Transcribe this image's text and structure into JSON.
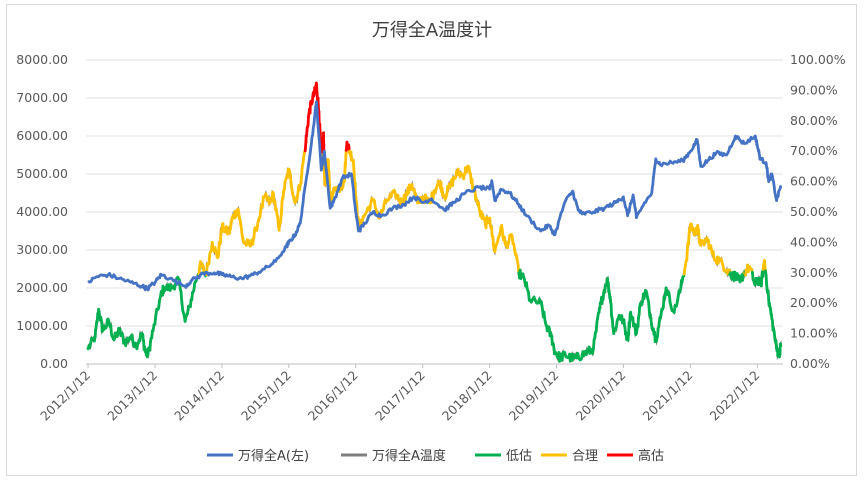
{
  "chart_data": {
    "type": "line",
    "title": "万得全A温度计",
    "x_tick_labels": [
      "2012/1/12",
      "2013/1/12",
      "2014/1/12",
      "2015/1/12",
      "2016/1/12",
      "2017/1/12",
      "2018/1/12",
      "2019/1/12",
      "2020/1/12",
      "2021/1/12",
      "2022/1/12"
    ],
    "y_left_ticks": [
      "0.00",
      "1000.00",
      "2000.00",
      "3000.00",
      "4000.00",
      "5000.00",
      "6000.00",
      "7000.00",
      "8000.00"
    ],
    "y_right_ticks": [
      "0.00%",
      "10.00%",
      "20.00%",
      "30.00%",
      "40.00%",
      "50.00%",
      "60.00%",
      "70.00%",
      "80.00%",
      "90.00%",
      "100.00%"
    ],
    "ylim_left": [
      0,
      8000
    ],
    "ylim_right": [
      0,
      100
    ],
    "x_range": [
      "2012/1/1",
      "2022/6/1"
    ],
    "legend": [
      "万得全A(左)",
      "万得全A温度",
      "低估",
      "合理",
      "高估"
    ],
    "colors": {
      "index": "#4472c4",
      "temperature": "#7f7f7f",
      "low": "#00b050",
      "fair": "#ffc000",
      "high": "#ff0000"
    },
    "thresholds_pct": {
      "low_upper": 30,
      "high_lower": 70
    },
    "series": [
      {
        "name": "万得全A(左)",
        "axis": "left",
        "points": [
          [
            "2012/1/12",
            2150
          ],
          [
            "2012/3/1",
            2300
          ],
          [
            "2012/5/1",
            2350
          ],
          [
            "2012/7/1",
            2250
          ],
          [
            "2012/9/1",
            2150
          ],
          [
            "2012/11/1",
            2050
          ],
          [
            "2012/12/1",
            1980
          ],
          [
            "2013/1/12",
            2150
          ],
          [
            "2013/2/15",
            2350
          ],
          [
            "2013/4/1",
            2250
          ],
          [
            "2013/6/25",
            2050
          ],
          [
            "2013/8/1",
            2200
          ],
          [
            "2013/10/1",
            2380
          ],
          [
            "2013/12/1",
            2400
          ],
          [
            "2014/1/12",
            2350
          ],
          [
            "2014/3/1",
            2300
          ],
          [
            "2014/5/1",
            2250
          ],
          [
            "2014/7/1",
            2350
          ],
          [
            "2014/9/1",
            2500
          ],
          [
            "2014/11/1",
            2700
          ],
          [
            "2014/12/31",
            3100
          ],
          [
            "2015/1/12",
            3200
          ],
          [
            "2015/2/15",
            3400
          ],
          [
            "2015/3/15",
            3700
          ],
          [
            "2015/4/15",
            4800
          ],
          [
            "2015/5/15",
            5800
          ],
          [
            "2015/6/12",
            6900
          ],
          [
            "2015/7/8",
            5100
          ],
          [
            "2015/7/25",
            5600
          ],
          [
            "2015/8/26",
            4100
          ],
          [
            "2015/9/15",
            4300
          ],
          [
            "2015/11/1",
            4900
          ],
          [
            "2015/12/20",
            5000
          ],
          [
            "2016/1/12",
            4000
          ],
          [
            "2016/1/28",
            3500
          ],
          [
            "2016/3/1",
            3700
          ],
          [
            "2016/4/15",
            4000
          ],
          [
            "2016/6/1",
            3900
          ],
          [
            "2016/8/1",
            4100
          ],
          [
            "2016/10/1",
            4200
          ],
          [
            "2016/11/25",
            4400
          ],
          [
            "2017/1/12",
            4250
          ],
          [
            "2017/3/1",
            4350
          ],
          [
            "2017/5/10",
            4050
          ],
          [
            "2017/7/1",
            4250
          ],
          [
            "2017/9/1",
            4500
          ],
          [
            "2017/11/15",
            4650
          ],
          [
            "2018/1/12",
            4600
          ],
          [
            "2018/1/25",
            4800
          ],
          [
            "2018/2/9",
            4300
          ],
          [
            "2018/3/15",
            4600
          ],
          [
            "2018/5/1",
            4500
          ],
          [
            "2018/6/20",
            4200
          ],
          [
            "2018/8/1",
            3900
          ],
          [
            "2018/10/18",
            3500
          ],
          [
            "2018/12/1",
            3650
          ],
          [
            "2019/1/3",
            3400
          ],
          [
            "2019/2/25",
            4250
          ],
          [
            "2019/4/10",
            4550
          ],
          [
            "2019/5/10",
            4050
          ],
          [
            "2019/6/1",
            3950
          ],
          [
            "2019/8/1",
            4000
          ],
          [
            "2019/10/1",
            4100
          ],
          [
            "2019/12/1",
            4250
          ],
          [
            "2020/1/12",
            4400
          ],
          [
            "2020/2/4",
            3900
          ],
          [
            "2020/3/5",
            4450
          ],
          [
            "2020/3/23",
            3850
          ],
          [
            "2020/5/1",
            4200
          ],
          [
            "2020/6/15",
            4500
          ],
          [
            "2020/7/7",
            5400
          ],
          [
            "2020/8/1",
            5250
          ],
          [
            "2020/10/1",
            5300
          ],
          [
            "2020/12/1",
            5350
          ],
          [
            "2021/1/12",
            5600
          ],
          [
            "2021/2/18",
            5900
          ],
          [
            "2021/3/9",
            5200
          ],
          [
            "2021/4/15",
            5350
          ],
          [
            "2021/6/1",
            5550
          ],
          [
            "2021/7/28",
            5500
          ],
          [
            "2021/9/14",
            6000
          ],
          [
            "2021/11/1",
            5800
          ],
          [
            "2021/12/31",
            6000
          ],
          [
            "2022/1/12",
            5750
          ],
          [
            "2022/1/28",
            5400
          ],
          [
            "2022/3/1",
            5300
          ],
          [
            "2022/3/15",
            4800
          ],
          [
            "2022/4/1",
            5000
          ],
          [
            "2022/4/27",
            4300
          ],
          [
            "2022/5/20",
            4700
          ]
        ]
      },
      {
        "name": "万得全A温度",
        "axis": "right",
        "points": [
          [
            "2012/1/12",
            5
          ],
          [
            "2012/2/20",
            9
          ],
          [
            "2012/3/10",
            18
          ],
          [
            "2012/4/1",
            11
          ],
          [
            "2012/5/5",
            14
          ],
          [
            "2012/6/1",
            8
          ],
          [
            "2012/7/1",
            11
          ],
          [
            "2012/8/1",
            7
          ],
          [
            "2012/9/1",
            9
          ],
          [
            "2012/10/1",
            6
          ],
          [
            "2012/11/1",
            10
          ],
          [
            "2012/11/20",
            4
          ],
          [
            "2012/12/4",
            3
          ],
          [
            "2013/1/1",
            11
          ],
          [
            "2013/2/10",
            22
          ],
          [
            "2013/3/1",
            25
          ],
          [
            "2013/4/15",
            25
          ],
          [
            "2013/5/20",
            28
          ],
          [
            "2013/6/25",
            14
          ],
          [
            "2013/7/20",
            19
          ],
          [
            "2013/8/20",
            27
          ],
          [
            "2013/9/20",
            33
          ],
          [
            "2013/10/15",
            29
          ],
          [
            "2013/11/20",
            40
          ],
          [
            "2013/12/20",
            35
          ],
          [
            "2014/1/12",
            45
          ],
          [
            "2014/2/20",
            43
          ],
          [
            "2014/3/10",
            48
          ],
          [
            "2014/4/10",
            51
          ],
          [
            "2014/5/10",
            40
          ],
          [
            "2014/6/20",
            39
          ],
          [
            "2014/7/15",
            44
          ],
          [
            "2014/9/1",
            55
          ],
          [
            "2014/10/1",
            53
          ],
          [
            "2014/10/20",
            56
          ],
          [
            "2014/11/20",
            44
          ],
          [
            "2014/12/15",
            57
          ],
          [
            "2015/1/12",
            64
          ],
          [
            "2015/2/15",
            53
          ],
          [
            "2015/3/15",
            59
          ],
          [
            "2015/4/15",
            73
          ],
          [
            "2015/5/1",
            82
          ],
          [
            "2015/5/15",
            86
          ],
          [
            "2015/6/5",
            90
          ],
          [
            "2015/6/12",
            92
          ],
          [
            "2015/6/25",
            83
          ],
          [
            "2015/7/8",
            68
          ],
          [
            "2015/7/20",
            76
          ],
          [
            "2015/7/27",
            59
          ],
          [
            "2015/8/15",
            67
          ],
          [
            "2015/8/26",
            53
          ],
          [
            "2015/9/20",
            58
          ],
          [
            "2015/10/20",
            58
          ],
          [
            "2015/11/10",
            60
          ],
          [
            "2015/11/25",
            73
          ],
          [
            "2015/12/10",
            70
          ],
          [
            "2015/12/30",
            67
          ],
          [
            "2016/1/15",
            53
          ],
          [
            "2016/1/28",
            45
          ],
          [
            "2016/3/1",
            49
          ],
          [
            "2016/4/15",
            54
          ],
          [
            "2016/5/20",
            48
          ],
          [
            "2016/7/1",
            54
          ],
          [
            "2016/8/15",
            56
          ],
          [
            "2016/9/20",
            53
          ],
          [
            "2016/10/15",
            56
          ],
          [
            "2016/11/15",
            59
          ],
          [
            "2016/12/15",
            53
          ],
          [
            "2017/1/12",
            55
          ],
          [
            "2017/2/20",
            53
          ],
          [
            "2017/3/15",
            57
          ],
          [
            "2017/4/15",
            60
          ],
          [
            "2017/5/10",
            55
          ],
          [
            "2017/6/15",
            59
          ],
          [
            "2017/7/20",
            63
          ],
          [
            "2017/8/20",
            62
          ],
          [
            "2017/9/15",
            65
          ],
          [
            "2017/10/15",
            58
          ],
          [
            "2017/11/20",
            50
          ],
          [
            "2017/12/20",
            46
          ],
          [
            "2018/1/12",
            48
          ],
          [
            "2018/2/9",
            37
          ],
          [
            "2018/3/15",
            45
          ],
          [
            "2018/4/10",
            39
          ],
          [
            "2018/5/15",
            42
          ],
          [
            "2018/6/20",
            30
          ],
          [
            "2018/7/20",
            28
          ],
          [
            "2018/8/20",
            21
          ],
          [
            "2018/10/18",
            20
          ],
          [
            "2018/11/15",
            13
          ],
          [
            "2018/12/15",
            9
          ],
          [
            "2019/1/3",
            4
          ],
          [
            "2019/2/1",
            2
          ],
          [
            "2019/3/1",
            3
          ],
          [
            "2019/4/1",
            2
          ],
          [
            "2019/5/1",
            2
          ],
          [
            "2019/6/1",
            3
          ],
          [
            "2019/7/1",
            4
          ],
          [
            "2019/8/1",
            5
          ],
          [
            "2019/9/1",
            17
          ],
          [
            "2019/9/20",
            22
          ],
          [
            "2019/10/15",
            28
          ],
          [
            "2019/11/1",
            22
          ],
          [
            "2019/11/20",
            10
          ],
          [
            "2019/12/20",
            16
          ],
          [
            "2020/1/12",
            14
          ],
          [
            "2020/2/4",
            8
          ],
          [
            "2020/2/20",
            17
          ],
          [
            "2020/3/23",
            10
          ],
          [
            "2020/4/15",
            20
          ],
          [
            "2020/5/15",
            24
          ],
          [
            "2020/6/10",
            15
          ],
          [
            "2020/7/7",
            8
          ],
          [
            "2020/8/1",
            15
          ],
          [
            "2020/9/1",
            25
          ],
          [
            "2020/10/15",
            17
          ],
          [
            "2020/11/20",
            25
          ],
          [
            "2020/12/20",
            34
          ],
          [
            "2021/1/12",
            46
          ],
          [
            "2021/2/5",
            43
          ],
          [
            "2021/2/18",
            45
          ],
          [
            "2021/3/9",
            39
          ],
          [
            "2021/4/15",
            41
          ],
          [
            "2021/5/20",
            35
          ],
          [
            "2021/6/20",
            34
          ],
          [
            "2021/7/28",
            31
          ],
          [
            "2021/8/15",
            30
          ],
          [
            "2021/9/1",
            29
          ],
          [
            "2021/9/14",
            29
          ],
          [
            "2021/10/10",
            27
          ],
          [
            "2021/11/1",
            30
          ],
          [
            "2021/12/1",
            32
          ],
          [
            "2021/12/31",
            26
          ],
          [
            "2022/1/12",
            28
          ],
          [
            "2022/2/1",
            26
          ],
          [
            "2022/2/20",
            34
          ],
          [
            "2022/3/15",
            21
          ],
          [
            "2022/4/1",
            15
          ],
          [
            "2022/4/27",
            5
          ],
          [
            "2022/5/10",
            3
          ],
          [
            "2022/5/20",
            6
          ]
        ]
      }
    ]
  }
}
